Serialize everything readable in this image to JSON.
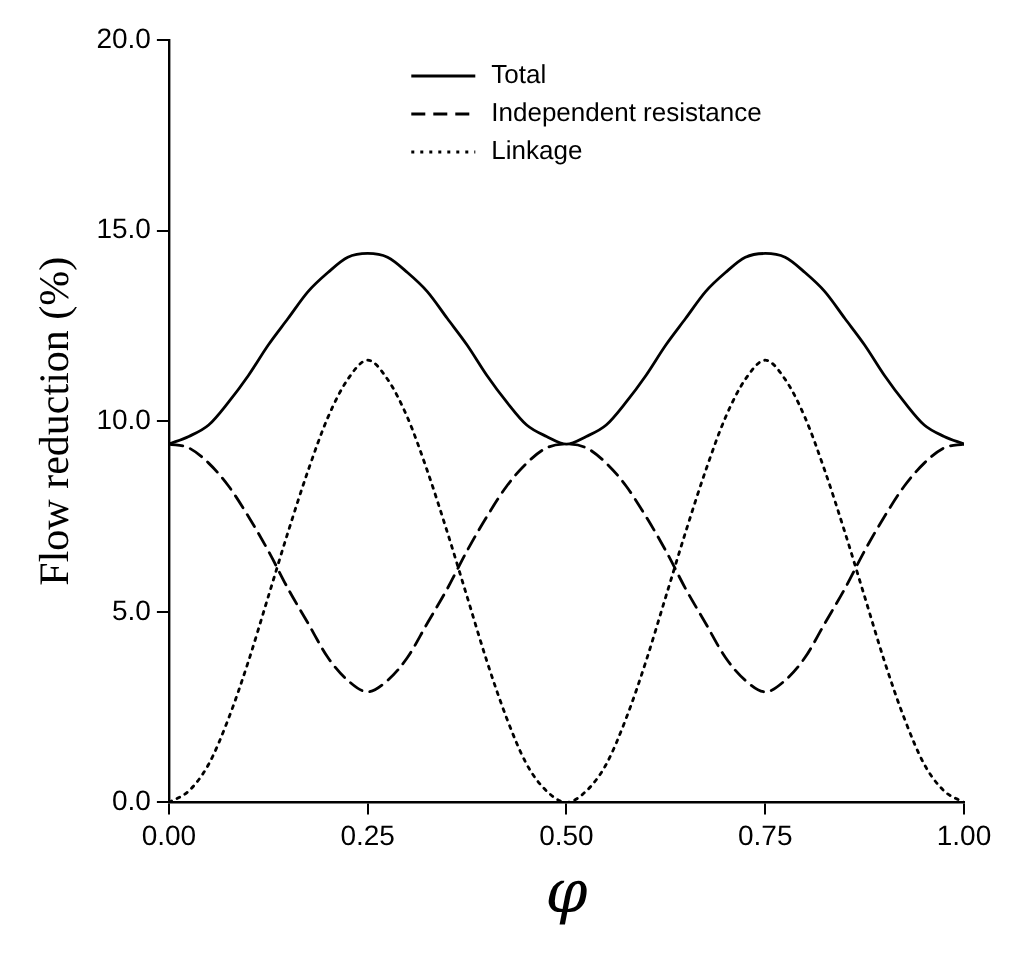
{
  "chart_data": {
    "type": "line",
    "xlabel": "φ",
    "ylabel": "Flow reduction (%)",
    "xlim": [
      0,
      1
    ],
    "xticks": [
      {
        "value": 0,
        "label": "0.00"
      },
      {
        "value": 0.25,
        "label": "0.25"
      },
      {
        "value": 0.5,
        "label": "0.50"
      },
      {
        "value": 0.75,
        "label": "0.75"
      },
      {
        "value": 1,
        "label": "1.00"
      }
    ],
    "ylim": [
      0,
      20
    ],
    "yticks": [
      {
        "value": 0,
        "label": "0.0"
      },
      {
        "value": 5,
        "label": "5.0"
      },
      {
        "value": 10,
        "label": "10.0"
      },
      {
        "value": 15,
        "label": "15.0"
      },
      {
        "value": 20,
        "label": "20.0"
      }
    ],
    "x": [
      0,
      0.025,
      0.05,
      0.075,
      0.1,
      0.125,
      0.15,
      0.175,
      0.2,
      0.225,
      0.25,
      0.275,
      0.3,
      0.325,
      0.35,
      0.375,
      0.4,
      0.425,
      0.45,
      0.475,
      0.5,
      0.525,
      0.55,
      0.575,
      0.6,
      0.625,
      0.65,
      0.675,
      0.7,
      0.725,
      0.75,
      0.775,
      0.8,
      0.825,
      0.85,
      0.875,
      0.9,
      0.925,
      0.95,
      0.975,
      1
    ],
    "legend": "top",
    "marker": "none",
    "series": [
      {
        "name": "Total",
        "color": "#000000",
        "line_style": "solid",
        "values": [
          9.4,
          9.6,
          9.9,
          10.5,
          11.2,
          12.0,
          12.7,
          13.4,
          13.9,
          14.3,
          14.4,
          14.3,
          13.9,
          13.4,
          12.7,
          12.0,
          11.2,
          10.5,
          9.9,
          9.6,
          9.4,
          9.6,
          9.9,
          10.5,
          11.2,
          12.0,
          12.7,
          13.4,
          13.9,
          14.3,
          14.4,
          14.3,
          13.9,
          13.4,
          12.7,
          12.0,
          11.2,
          10.5,
          9.9,
          9.6,
          9.4
        ]
      },
      {
        "name": "Independent resistance",
        "color": "#000000",
        "line_style": "dashed",
        "values": [
          9.4,
          9.3,
          8.9,
          8.3,
          7.5,
          6.6,
          5.6,
          4.7,
          3.8,
          3.2,
          2.9,
          3.2,
          3.8,
          4.7,
          5.6,
          6.6,
          7.5,
          8.3,
          8.9,
          9.3,
          9.4,
          9.3,
          8.9,
          8.3,
          7.5,
          6.6,
          5.6,
          4.7,
          3.8,
          3.2,
          2.9,
          3.2,
          3.8,
          4.7,
          5.6,
          6.6,
          7.5,
          8.3,
          8.9,
          9.3,
          9.4
        ]
      },
      {
        "name": "Linkage",
        "color": "#000000",
        "line_style": "dotted",
        "values": [
          0,
          0.3,
          1.0,
          2.2,
          3.7,
          5.4,
          7.1,
          8.7,
          10.1,
          11.1,
          11.6,
          11.1,
          10.1,
          8.7,
          7.1,
          5.4,
          3.7,
          2.2,
          1.0,
          0.3,
          0,
          0.3,
          1.0,
          2.2,
          3.7,
          5.4,
          7.1,
          8.7,
          10.1,
          11.1,
          11.6,
          11.1,
          10.1,
          8.7,
          7.1,
          5.4,
          3.7,
          2.2,
          1.0,
          0.3,
          0
        ]
      }
    ]
  }
}
